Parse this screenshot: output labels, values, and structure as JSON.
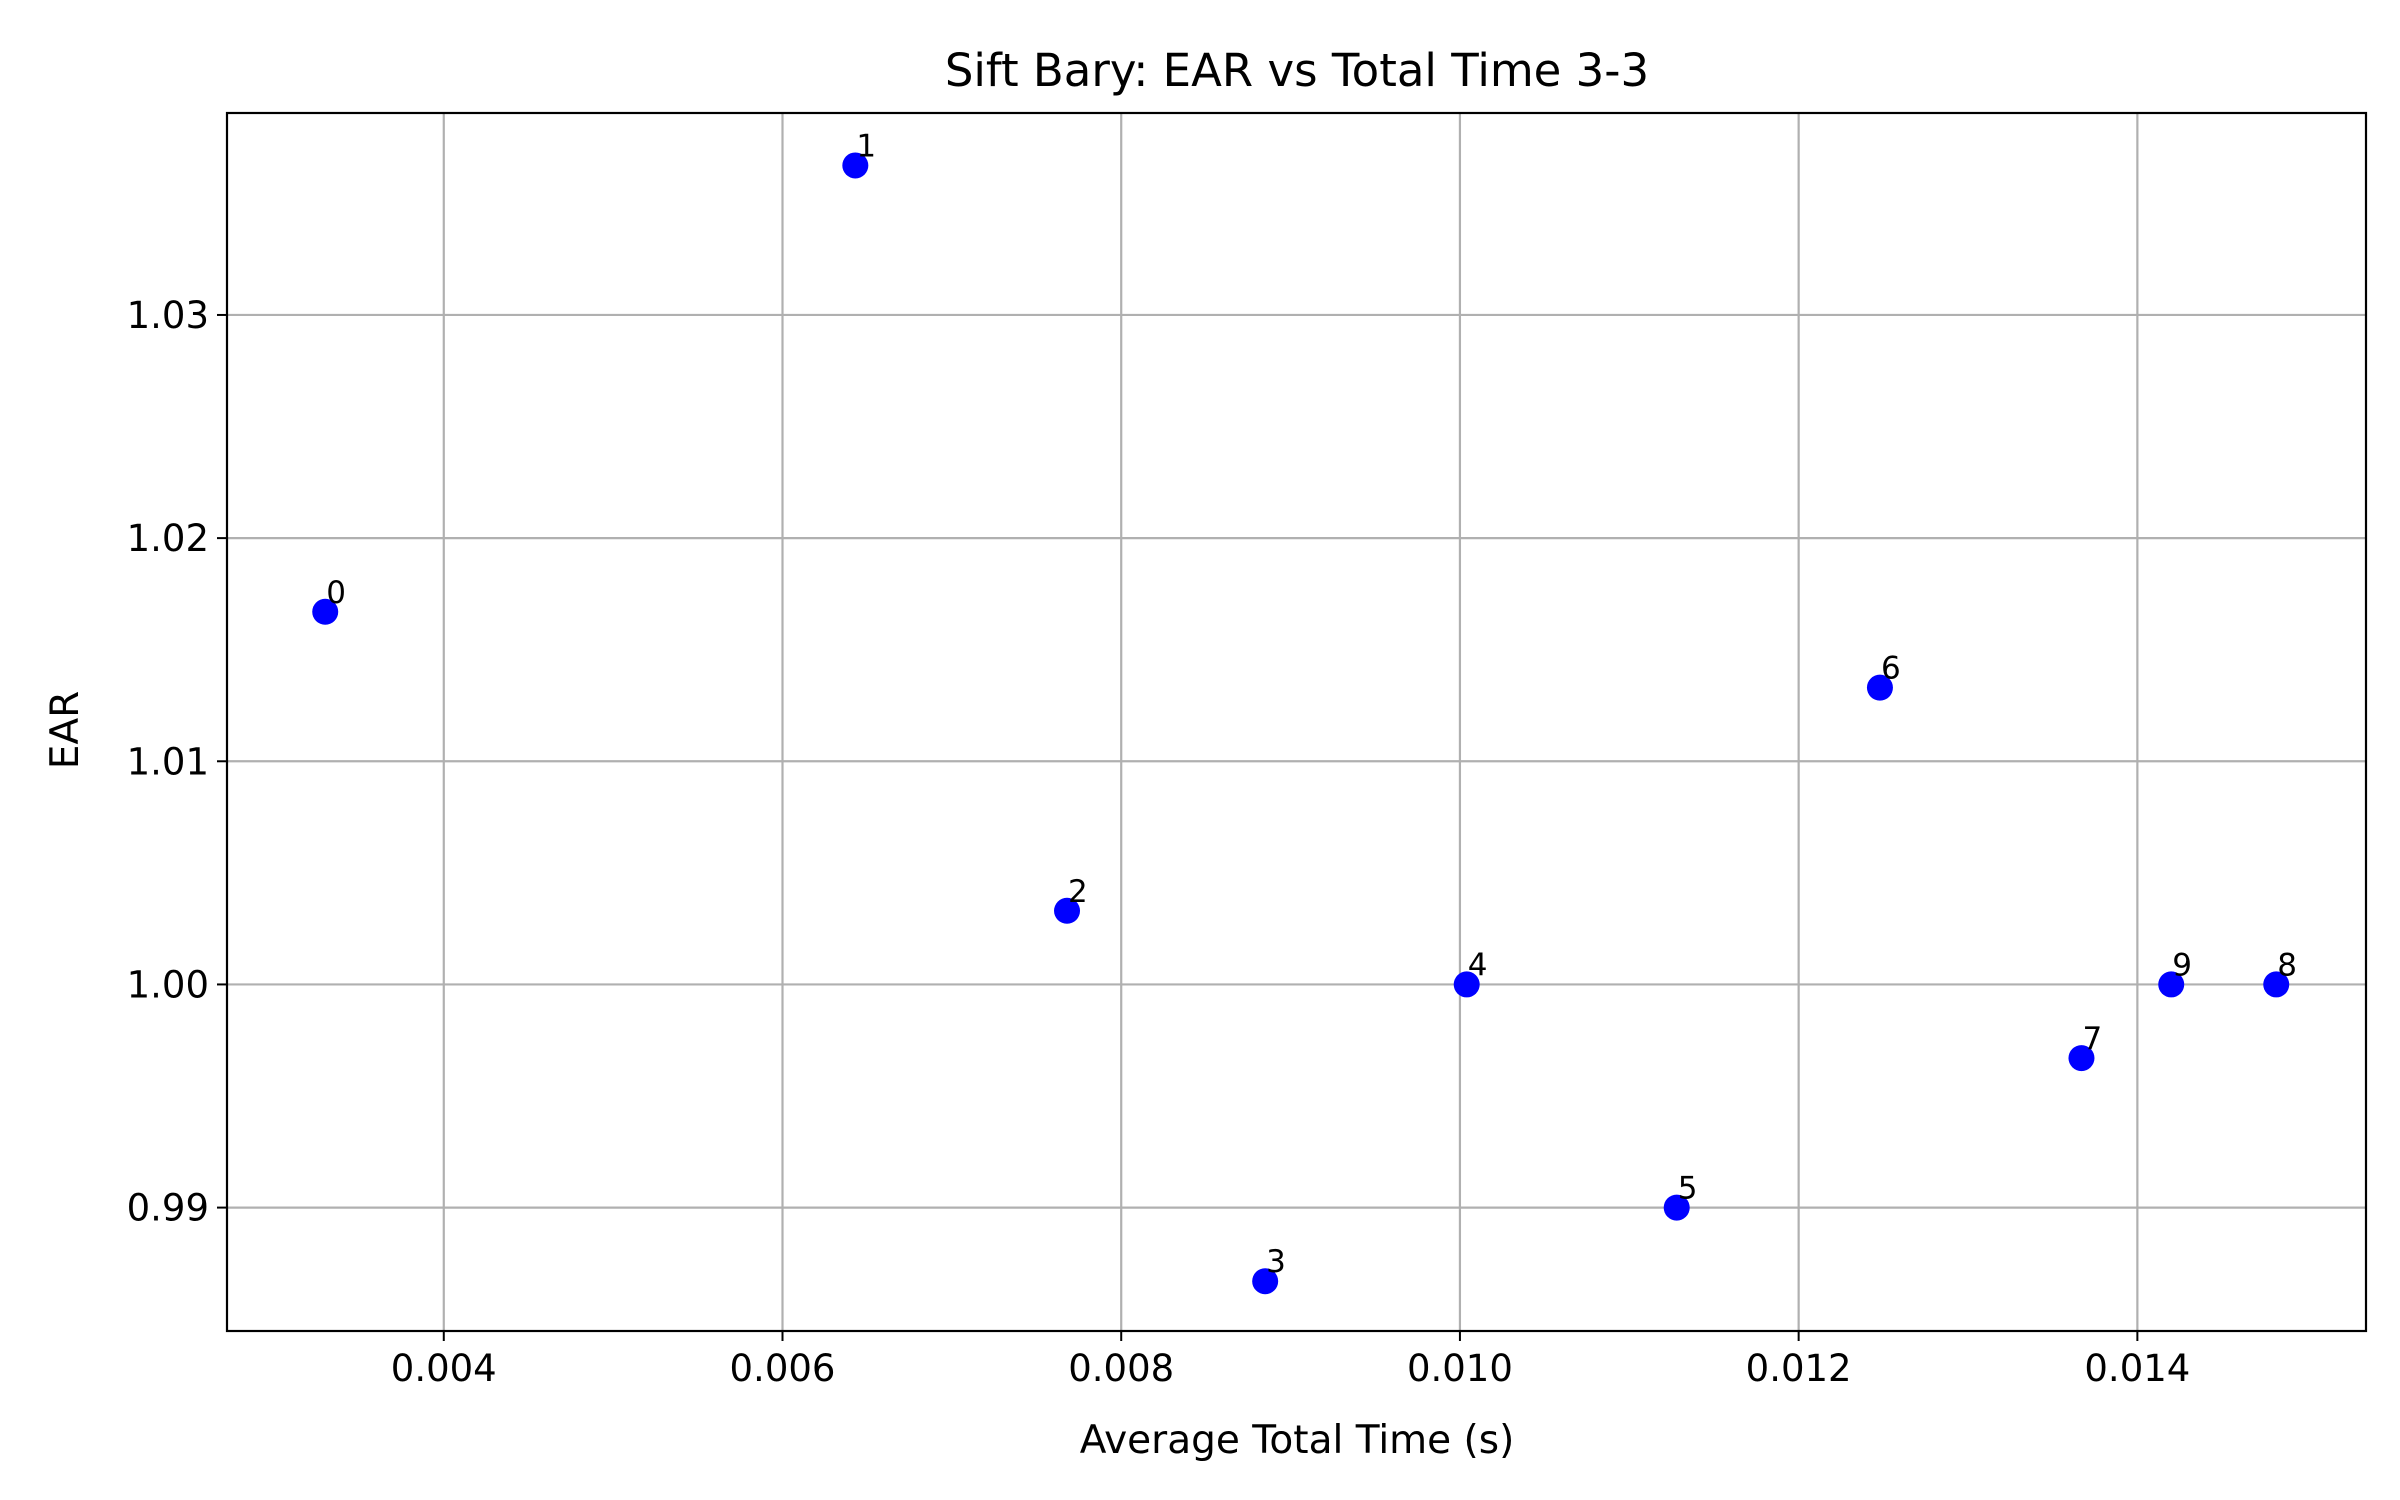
{
  "chart_data": {
    "type": "scatter",
    "title": "Sift Bary: EAR vs Total Time 3-3",
    "xlabel": "Average Total Time (s)",
    "ylabel": "EAR",
    "xlim": [
      0.00272,
      0.01535
    ],
    "ylim": [
      0.98447,
      1.03905
    ],
    "xticks": [
      0.004,
      0.006,
      0.008,
      0.01,
      0.012,
      0.014
    ],
    "xtick_labels": [
      "0.004",
      "0.006",
      "0.008",
      "0.010",
      "0.012",
      "0.014"
    ],
    "yticks": [
      0.99,
      1.0,
      1.01,
      1.02,
      1.03
    ],
    "ytick_labels": [
      "0.99",
      "1.00",
      "1.01",
      "1.02",
      "1.03"
    ],
    "grid": true,
    "marker_color": "#0000ff",
    "points": [
      {
        "label": "0",
        "x": 0.0033,
        "y": 1.0167
      },
      {
        "label": "1",
        "x": 0.00643,
        "y": 1.0367
      },
      {
        "label": "2",
        "x": 0.00768,
        "y": 1.0033
      },
      {
        "label": "3",
        "x": 0.00885,
        "y": 0.9867
      },
      {
        "label": "4",
        "x": 0.01004,
        "y": 1.0
      },
      {
        "label": "5",
        "x": 0.01128,
        "y": 0.99
      },
      {
        "label": "6",
        "x": 0.01248,
        "y": 1.0133
      },
      {
        "label": "7",
        "x": 0.01367,
        "y": 0.9967
      },
      {
        "label": "8",
        "x": 0.01482,
        "y": 1.0
      },
      {
        "label": "9",
        "x": 0.0142,
        "y": 1.0
      }
    ]
  }
}
